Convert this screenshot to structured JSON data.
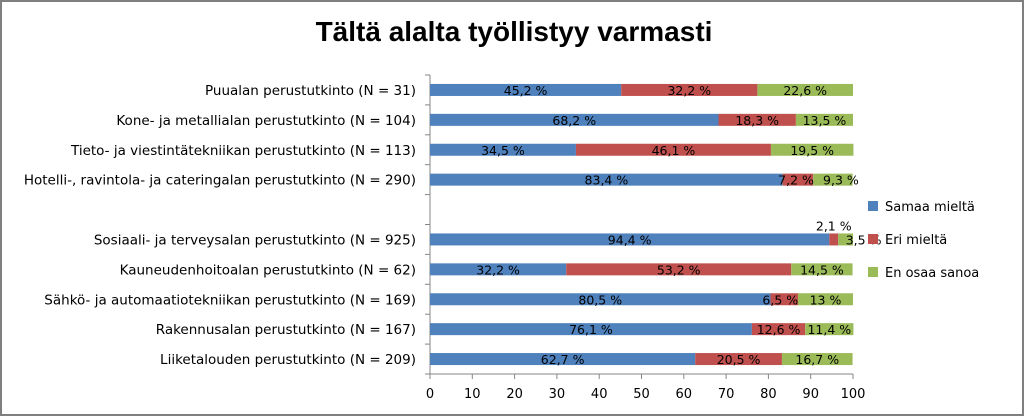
{
  "chart_data": {
    "type": "bar",
    "orientation": "horizontal",
    "stacked": true,
    "title": "Tältä alalta työllistyy varmasti",
    "xlim": [
      0,
      100
    ],
    "x_ticks": [
      "0",
      "10",
      "20",
      "30",
      "40",
      "50",
      "60",
      "70",
      "80",
      "90",
      "100"
    ],
    "legend_position": "right",
    "categories": [
      "Puualan perustutkinto (N = 31)",
      "Kone- ja metallialan perustutkinto (N = 104)",
      "Tieto- ja viestintätekniikan perustutkinto (N = 113)",
      "Hotelli-, ravintola- ja cateringalan perustutkinto (N = 290)",
      "",
      "Sosiaali- ja terveysalan perustutkinto (N = 925)",
      "Kauneudenhoitoalan perustutkinto (N = 62)",
      "Sähkö- ja automaatiotekniikan perustutkinto (N = 169)",
      "Rakennusalan perustutkinto (N = 167)",
      "Liiketalouden perustutkinto (N = 209)"
    ],
    "series": [
      {
        "name": "Samaa mieltä",
        "color": "#4f81bd",
        "values": [
          45.2,
          68.2,
          34.5,
          83.4,
          null,
          94.4,
          32.2,
          80.5,
          76.1,
          62.7
        ],
        "labels": [
          "45,2 %",
          "68,2 %",
          "34,5 %",
          "83,4 %",
          "",
          "94,4 %",
          "32,2 %",
          "80,5 %",
          "76,1 %",
          "62,7 %"
        ]
      },
      {
        "name": "Eri mieltä",
        "color": "#c0504d",
        "values": [
          32.2,
          18.3,
          46.1,
          7.2,
          null,
          2.1,
          53.2,
          6.5,
          12.6,
          20.5
        ],
        "labels": [
          "32,2 %",
          "18,3 %",
          "46,1 %",
          "7,2 %",
          "",
          "2,1 %",
          "53,2 %",
          "6,5 %",
          "12,6 %",
          "20,5 %"
        ]
      },
      {
        "name": "En osaa sanoa",
        "color": "#9bbb59",
        "values": [
          22.6,
          13.5,
          19.5,
          9.3,
          null,
          3.5,
          14.5,
          13,
          11.4,
          16.7
        ],
        "labels": [
          "22,6 %",
          "13,5 %",
          "19,5 %",
          "9,3 %",
          "",
          "3,5 %",
          "14,5 %",
          "13 %",
          "11,4 %",
          "16,7 %"
        ]
      }
    ]
  }
}
